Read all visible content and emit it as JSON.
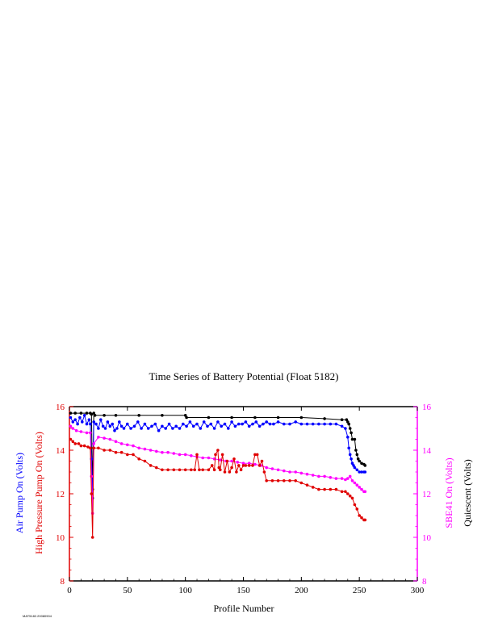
{
  "chart_data": {
    "type": "line",
    "title": "Time Series of Battery Potential (Float 5182)",
    "xlabel": "Profile Number",
    "xlim": [
      0,
      300
    ],
    "xticks": [
      "0",
      "50",
      "100",
      "150",
      "200",
      "250",
      "300"
    ],
    "ylim": [
      8,
      16
    ],
    "yticks_left": [
      "8",
      "10",
      "12",
      "14",
      "16"
    ],
    "yticks_right": [
      "8",
      "10",
      "12",
      "14",
      "16"
    ],
    "ylabel_left": [
      "Air Pump On (Volts)",
      "High Pressure Pump On (Volts)"
    ],
    "ylabel_right": [
      "SBE41 On (Volts)",
      "Quiescent (Volts)"
    ],
    "footer": "MAT5182.20080904",
    "colors": {
      "axis_left": "#e00000",
      "axis_right": "#ff00ff",
      "frame": "#000000"
    },
    "series": [
      {
        "name": "Quiescent (Volts)",
        "color": "#000000",
        "points": [
          [
            1,
            15.7
          ],
          [
            5,
            15.7
          ],
          [
            10,
            15.7
          ],
          [
            15,
            15.7
          ],
          [
            18,
            15.7
          ],
          [
            19,
            15.65
          ],
          [
            20,
            12.2
          ],
          [
            21,
            15.7
          ],
          [
            22,
            15.6
          ],
          [
            30,
            15.6
          ],
          [
            40,
            15.6
          ],
          [
            60,
            15.6
          ],
          [
            80,
            15.6
          ],
          [
            100,
            15.6
          ],
          [
            101,
            15.5
          ],
          [
            120,
            15.5
          ],
          [
            140,
            15.5
          ],
          [
            160,
            15.5
          ],
          [
            180,
            15.5
          ],
          [
            200,
            15.5
          ],
          [
            220,
            15.45
          ],
          [
            235,
            15.4
          ],
          [
            239,
            15.4
          ],
          [
            240,
            15.3
          ],
          [
            241,
            15.2
          ],
          [
            242,
            15.0
          ],
          [
            243,
            14.8
          ],
          [
            244,
            14.5
          ],
          [
            246,
            14.5
          ],
          [
            247,
            14.0
          ],
          [
            248,
            13.8
          ],
          [
            249,
            13.6
          ],
          [
            250,
            13.5
          ],
          [
            252,
            13.4
          ],
          [
            254,
            13.35
          ],
          [
            255,
            13.3
          ]
        ]
      },
      {
        "name": "Air Pump On (Volts)",
        "color": "#0000ff",
        "points": [
          [
            1,
            15.5
          ],
          [
            3,
            15.3
          ],
          [
            5,
            15.4
          ],
          [
            7,
            15.2
          ],
          [
            9,
            15.5
          ],
          [
            11,
            15.3
          ],
          [
            13,
            15.6
          ],
          [
            15,
            15.2
          ],
          [
            17,
            15.4
          ],
          [
            18,
            15.2
          ],
          [
            19,
            13.6
          ],
          [
            20,
            11.8
          ],
          [
            21,
            15.3
          ],
          [
            23,
            15.2
          ],
          [
            25,
            15.0
          ],
          [
            27,
            15.4
          ],
          [
            29,
            15.1
          ],
          [
            31,
            15.0
          ],
          [
            33,
            15.3
          ],
          [
            35,
            15.1
          ],
          [
            37,
            15.2
          ],
          [
            39,
            14.9
          ],
          [
            41,
            15.0
          ],
          [
            43,
            15.3
          ],
          [
            45,
            15.1
          ],
          [
            47,
            15.0
          ],
          [
            50,
            15.2
          ],
          [
            53,
            15.0
          ],
          [
            56,
            15.1
          ],
          [
            59,
            15.3
          ],
          [
            62,
            15.0
          ],
          [
            65,
            15.2
          ],
          [
            68,
            15.0
          ],
          [
            71,
            15.1
          ],
          [
            74,
            15.2
          ],
          [
            77,
            14.9
          ],
          [
            80,
            15.1
          ],
          [
            83,
            15.0
          ],
          [
            86,
            15.2
          ],
          [
            89,
            15.0
          ],
          [
            92,
            15.1
          ],
          [
            95,
            15.0
          ],
          [
            98,
            15.2
          ],
          [
            101,
            15.1
          ],
          [
            104,
            15.3
          ],
          [
            107,
            15.1
          ],
          [
            110,
            15.2
          ],
          [
            113,
            15.0
          ],
          [
            116,
            15.3
          ],
          [
            119,
            15.1
          ],
          [
            122,
            15.2
          ],
          [
            125,
            15.0
          ],
          [
            128,
            15.3
          ],
          [
            131,
            15.1
          ],
          [
            134,
            15.2
          ],
          [
            137,
            15.0
          ],
          [
            140,
            15.3
          ],
          [
            143,
            15.1
          ],
          [
            146,
            15.2
          ],
          [
            149,
            15.2
          ],
          [
            152,
            15.3
          ],
          [
            155,
            15.1
          ],
          [
            158,
            15.2
          ],
          [
            161,
            15.3
          ],
          [
            164,
            15.1
          ],
          [
            167,
            15.2
          ],
          [
            170,
            15.3
          ],
          [
            173,
            15.2
          ],
          [
            176,
            15.2
          ],
          [
            180,
            15.3
          ],
          [
            185,
            15.2
          ],
          [
            190,
            15.2
          ],
          [
            195,
            15.3
          ],
          [
            200,
            15.2
          ],
          [
            205,
            15.2
          ],
          [
            210,
            15.2
          ],
          [
            215,
            15.2
          ],
          [
            220,
            15.2
          ],
          [
            225,
            15.2
          ],
          [
            230,
            15.2
          ],
          [
            235,
            15.1
          ],
          [
            238,
            15.0
          ],
          [
            240,
            14.6
          ],
          [
            241,
            14.1
          ],
          [
            242,
            13.8
          ],
          [
            243,
            13.6
          ],
          [
            244,
            13.4
          ],
          [
            245,
            13.3
          ],
          [
            246,
            13.2
          ],
          [
            248,
            13.1
          ],
          [
            250,
            13.0
          ],
          [
            252,
            13.0
          ],
          [
            254,
            13.0
          ],
          [
            255,
            13.0
          ]
        ]
      },
      {
        "name": "SBE41 On (Volts)",
        "color": "#ff00ff",
        "points": [
          [
            1,
            15.1
          ],
          [
            3,
            15.0
          ],
          [
            6,
            14.9
          ],
          [
            10,
            14.85
          ],
          [
            15,
            14.8
          ],
          [
            18,
            14.8
          ],
          [
            19,
            12.8
          ],
          [
            20,
            11.1
          ],
          [
            21,
            14.3
          ],
          [
            25,
            14.6
          ],
          [
            30,
            14.55
          ],
          [
            35,
            14.5
          ],
          [
            40,
            14.4
          ],
          [
            45,
            14.3
          ],
          [
            50,
            14.25
          ],
          [
            55,
            14.2
          ],
          [
            60,
            14.1
          ],
          [
            65,
            14.05
          ],
          [
            70,
            14.0
          ],
          [
            75,
            13.95
          ],
          [
            80,
            13.9
          ],
          [
            85,
            13.9
          ],
          [
            90,
            13.85
          ],
          [
            95,
            13.8
          ],
          [
            100,
            13.8
          ],
          [
            105,
            13.75
          ],
          [
            110,
            13.7
          ],
          [
            115,
            13.65
          ],
          [
            120,
            13.65
          ],
          [
            125,
            13.6
          ],
          [
            130,
            13.55
          ],
          [
            135,
            13.5
          ],
          [
            140,
            13.5
          ],
          [
            145,
            13.45
          ],
          [
            150,
            13.4
          ],
          [
            155,
            13.4
          ],
          [
            160,
            13.35
          ],
          [
            165,
            13.3
          ],
          [
            170,
            13.2
          ],
          [
            175,
            13.15
          ],
          [
            180,
            13.1
          ],
          [
            185,
            13.05
          ],
          [
            190,
            13.0
          ],
          [
            195,
            13.0
          ],
          [
            200,
            12.95
          ],
          [
            205,
            12.9
          ],
          [
            210,
            12.85
          ],
          [
            215,
            12.8
          ],
          [
            220,
            12.8
          ],
          [
            225,
            12.75
          ],
          [
            230,
            12.7
          ],
          [
            235,
            12.7
          ],
          [
            238,
            12.65
          ],
          [
            240,
            12.7
          ],
          [
            242,
            12.8
          ],
          [
            244,
            12.6
          ],
          [
            246,
            12.5
          ],
          [
            248,
            12.4
          ],
          [
            250,
            12.3
          ],
          [
            252,
            12.2
          ],
          [
            254,
            12.1
          ],
          [
            255,
            12.1
          ]
        ]
      },
      {
        "name": "High Pressure Pump On (Volts)",
        "color": "#e00000",
        "points": [
          [
            1,
            14.5
          ],
          [
            3,
            14.4
          ],
          [
            5,
            14.3
          ],
          [
            8,
            14.3
          ],
          [
            10,
            14.2
          ],
          [
            13,
            14.2
          ],
          [
            16,
            14.15
          ],
          [
            18,
            14.1
          ],
          [
            19,
            12.0
          ],
          [
            20,
            10.0
          ],
          [
            21,
            14.1
          ],
          [
            25,
            14.1
          ],
          [
            30,
            14.0
          ],
          [
            35,
            14.0
          ],
          [
            40,
            13.9
          ],
          [
            45,
            13.9
          ],
          [
            50,
            13.8
          ],
          [
            55,
            13.8
          ],
          [
            60,
            13.6
          ],
          [
            65,
            13.5
          ],
          [
            70,
            13.3
          ],
          [
            75,
            13.2
          ],
          [
            80,
            13.1
          ],
          [
            85,
            13.1
          ],
          [
            90,
            13.1
          ],
          [
            95,
            13.1
          ],
          [
            100,
            13.1
          ],
          [
            105,
            13.1
          ],
          [
            108,
            13.1
          ],
          [
            110,
            13.8
          ],
          [
            112,
            13.1
          ],
          [
            115,
            13.1
          ],
          [
            120,
            13.1
          ],
          [
            123,
            13.3
          ],
          [
            125,
            13.1
          ],
          [
            126,
            13.8
          ],
          [
            128,
            14.0
          ],
          [
            129,
            13.2
          ],
          [
            130,
            13.1
          ],
          [
            132,
            13.8
          ],
          [
            134,
            13.0
          ],
          [
            136,
            13.5
          ],
          [
            138,
            13.0
          ],
          [
            140,
            13.2
          ],
          [
            142,
            13.6
          ],
          [
            144,
            13.0
          ],
          [
            146,
            13.3
          ],
          [
            148,
            13.1
          ],
          [
            150,
            13.3
          ],
          [
            152,
            13.3
          ],
          [
            155,
            13.3
          ],
          [
            158,
            13.3
          ],
          [
            160,
            13.8
          ],
          [
            162,
            13.8
          ],
          [
            164,
            13.3
          ],
          [
            166,
            13.5
          ],
          [
            168,
            13.0
          ],
          [
            170,
            12.6
          ],
          [
            175,
            12.6
          ],
          [
            180,
            12.6
          ],
          [
            185,
            12.6
          ],
          [
            190,
            12.6
          ],
          [
            195,
            12.6
          ],
          [
            200,
            12.5
          ],
          [
            205,
            12.4
          ],
          [
            210,
            12.3
          ],
          [
            215,
            12.2
          ],
          [
            220,
            12.2
          ],
          [
            225,
            12.2
          ],
          [
            230,
            12.2
          ],
          [
            235,
            12.1
          ],
          [
            238,
            12.1
          ],
          [
            240,
            12.0
          ],
          [
            242,
            11.9
          ],
          [
            244,
            11.8
          ],
          [
            246,
            11.5
          ],
          [
            248,
            11.3
          ],
          [
            250,
            11.0
          ],
          [
            252,
            10.9
          ],
          [
            254,
            10.8
          ],
          [
            255,
            10.8
          ]
        ]
      }
    ]
  }
}
